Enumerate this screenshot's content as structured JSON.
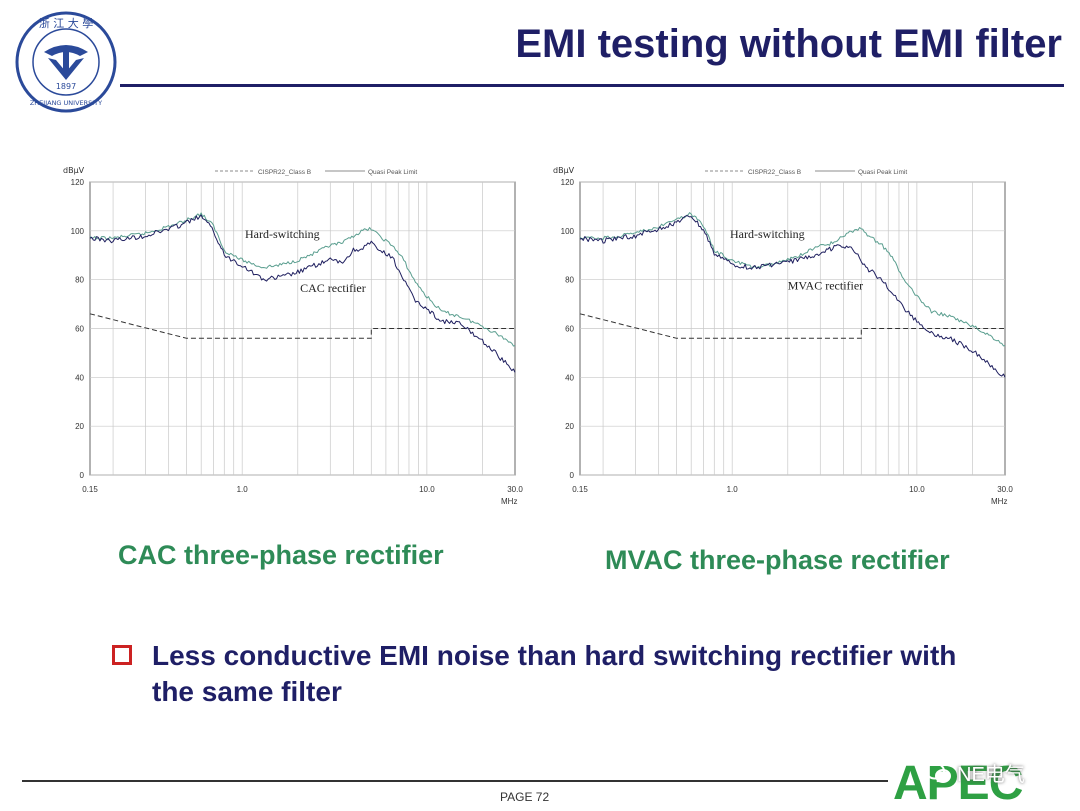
{
  "slide": {
    "title": "EMI testing without EMI filter",
    "caption_left": "CAC three-phase rectifier",
    "caption_right": "MVAC three-phase rectifier",
    "bullet": "Less conductive EMI noise than hard switching rectifier with the same filter",
    "page_label": "PAGE 72",
    "logo_text": "APEC",
    "watermark_label": "NE电气",
    "university_logo": {
      "icon": "zhejiang-university-seal-icon",
      "ring_top": "浙 江 大 學",
      "ring_bottom": "ZHEJIANG UNIVERSITY",
      "year": "1897"
    },
    "colors": {
      "title": "#1f1f66",
      "caption": "#2e8b57",
      "bullet_box": "#cc2222",
      "apec": "#2ea043"
    }
  },
  "chart_data": [
    {
      "type": "line",
      "ylabel": "dBμV",
      "xlabel": "MHz",
      "xscale": "log",
      "xlim": [
        0.15,
        30
      ],
      "ylim": [
        0,
        120
      ],
      "x_ticks": [
        {
          "v": 0.15,
          "label": "0.15"
        },
        {
          "v": 1,
          "label": "1.0"
        },
        {
          "v": 10,
          "label": "10.0"
        },
        {
          "v": 30,
          "label": "30.0"
        }
      ],
      "y_ticks": [
        0,
        20,
        40,
        60,
        80,
        100,
        120
      ],
      "grid": true,
      "legend": [
        {
          "label": "CISPR22_Class B",
          "style": "dashed"
        },
        {
          "label": "Quasi Peak Limit",
          "style": "solid"
        }
      ],
      "annotations": [
        {
          "text": "Hard-switching",
          "x": 1.65,
          "y": 97
        },
        {
          "text": "CAC rectifier",
          "x": 3.1,
          "y": 75
        }
      ],
      "series": [
        {
          "role": "limit",
          "color": "#333333",
          "points": [
            [
              0.15,
              66
            ],
            [
              0.5,
              56
            ],
            [
              5,
              56
            ],
            [
              5,
              60
            ],
            [
              30,
              60
            ]
          ]
        },
        {
          "role": "hard-switching",
          "color": "#5a9e8f",
          "points": [
            [
              0.15,
              97
            ],
            [
              0.2,
              97
            ],
            [
              0.3,
              99
            ],
            [
              0.45,
              103
            ],
            [
              0.6,
              107
            ],
            [
              0.7,
              102
            ],
            [
              0.8,
              92
            ],
            [
              1.0,
              88
            ],
            [
              1.3,
              85
            ],
            [
              1.6,
              86
            ],
            [
              2.0,
              88
            ],
            [
              2.5,
              91
            ],
            [
              3.0,
              94
            ],
            [
              3.5,
              95
            ],
            [
              4.0,
              98
            ],
            [
              4.5,
              100
            ],
            [
              5.0,
              101
            ],
            [
              5.5,
              98
            ],
            [
              6.5,
              94
            ],
            [
              7.5,
              88
            ],
            [
              8.5,
              80
            ],
            [
              10,
              73
            ],
            [
              12,
              67
            ],
            [
              15,
              65
            ],
            [
              20,
              61
            ],
            [
              25,
              57
            ],
            [
              30,
              53
            ]
          ]
        },
        {
          "role": "rectifier",
          "color": "#1f1f5f",
          "points": [
            [
              0.15,
              97
            ],
            [
              0.2,
              96
            ],
            [
              0.3,
              98
            ],
            [
              0.45,
              102
            ],
            [
              0.6,
              106
            ],
            [
              0.7,
              100
            ],
            [
              0.8,
              90
            ],
            [
              1.0,
              86
            ],
            [
              1.3,
              80
            ],
            [
              1.6,
              81
            ],
            [
              2.0,
              83
            ],
            [
              2.5,
              86
            ],
            [
              3.0,
              88
            ],
            [
              3.5,
              87
            ],
            [
              4.0,
              92
            ],
            [
              4.5,
              93
            ],
            [
              5.0,
              95
            ],
            [
              5.5,
              92
            ],
            [
              6.5,
              89
            ],
            [
              7.5,
              80
            ],
            [
              8.5,
              72
            ],
            [
              10,
              68
            ],
            [
              12,
              63
            ],
            [
              15,
              62
            ],
            [
              20,
              55
            ],
            [
              25,
              48
            ],
            [
              30,
              42
            ]
          ]
        }
      ]
    },
    {
      "type": "line",
      "ylabel": "dBμV",
      "xlabel": "MHz",
      "xscale": "log",
      "xlim": [
        0.15,
        30
      ],
      "ylim": [
        0,
        120
      ],
      "x_ticks": [
        {
          "v": 0.15,
          "label": "0.15"
        },
        {
          "v": 1,
          "label": "1.0"
        },
        {
          "v": 10,
          "label": "10.0"
        },
        {
          "v": 30,
          "label": "30.0"
        }
      ],
      "y_ticks": [
        0,
        20,
        40,
        60,
        80,
        100,
        120
      ],
      "grid": true,
      "legend": [
        {
          "label": "CISPR22_Class B",
          "style": "dashed"
        },
        {
          "label": "Quasi Peak Limit",
          "style": "solid"
        }
      ],
      "annotations": [
        {
          "text": "Hard-switching",
          "x": 1.55,
          "y": 97
        },
        {
          "text": "MVAC rectifier",
          "x": 3.2,
          "y": 76
        }
      ],
      "series": [
        {
          "role": "limit",
          "color": "#333333",
          "points": [
            [
              0.15,
              66
            ],
            [
              0.5,
              56
            ],
            [
              5,
              56
            ],
            [
              5,
              60
            ],
            [
              30,
              60
            ]
          ]
        },
        {
          "role": "hard-switching",
          "color": "#5a9e8f",
          "points": [
            [
              0.15,
              97
            ],
            [
              0.2,
              97
            ],
            [
              0.3,
              99
            ],
            [
              0.45,
              103
            ],
            [
              0.6,
              107
            ],
            [
              0.7,
              102
            ],
            [
              0.8,
              92
            ],
            [
              1.0,
              88
            ],
            [
              1.3,
              85
            ],
            [
              1.6,
              86
            ],
            [
              2.0,
              88
            ],
            [
              2.5,
              91
            ],
            [
              3.0,
              94
            ],
            [
              3.5,
              95
            ],
            [
              4.0,
              98
            ],
            [
              4.5,
              100
            ],
            [
              5.0,
              101
            ],
            [
              5.5,
              98
            ],
            [
              6.5,
              94
            ],
            [
              7.5,
              88
            ],
            [
              8.5,
              80
            ],
            [
              10,
              73
            ],
            [
              12,
              67
            ],
            [
              15,
              65
            ],
            [
              20,
              61
            ],
            [
              25,
              57
            ],
            [
              30,
              53
            ]
          ]
        },
        {
          "role": "rectifier",
          "color": "#1f1f5f",
          "points": [
            [
              0.15,
              97
            ],
            [
              0.2,
              96
            ],
            [
              0.3,
              98
            ],
            [
              0.45,
              102
            ],
            [
              0.6,
              106
            ],
            [
              0.7,
              100
            ],
            [
              0.8,
              91
            ],
            [
              1.0,
              86
            ],
            [
              1.3,
              85
            ],
            [
              1.6,
              86
            ],
            [
              2.0,
              87
            ],
            [
              2.5,
              89
            ],
            [
              3.0,
              91
            ],
            [
              3.5,
              93
            ],
            [
              4.0,
              94
            ],
            [
              4.5,
              92
            ],
            [
              5.0,
              88
            ],
            [
              5.5,
              84
            ],
            [
              6.5,
              80
            ],
            [
              7.5,
              74
            ],
            [
              8.5,
              68
            ],
            [
              10,
              63
            ],
            [
              12,
              58
            ],
            [
              15,
              56
            ],
            [
              20,
              51
            ],
            [
              25,
              45
            ],
            [
              30,
              40
            ]
          ]
        }
      ]
    }
  ]
}
